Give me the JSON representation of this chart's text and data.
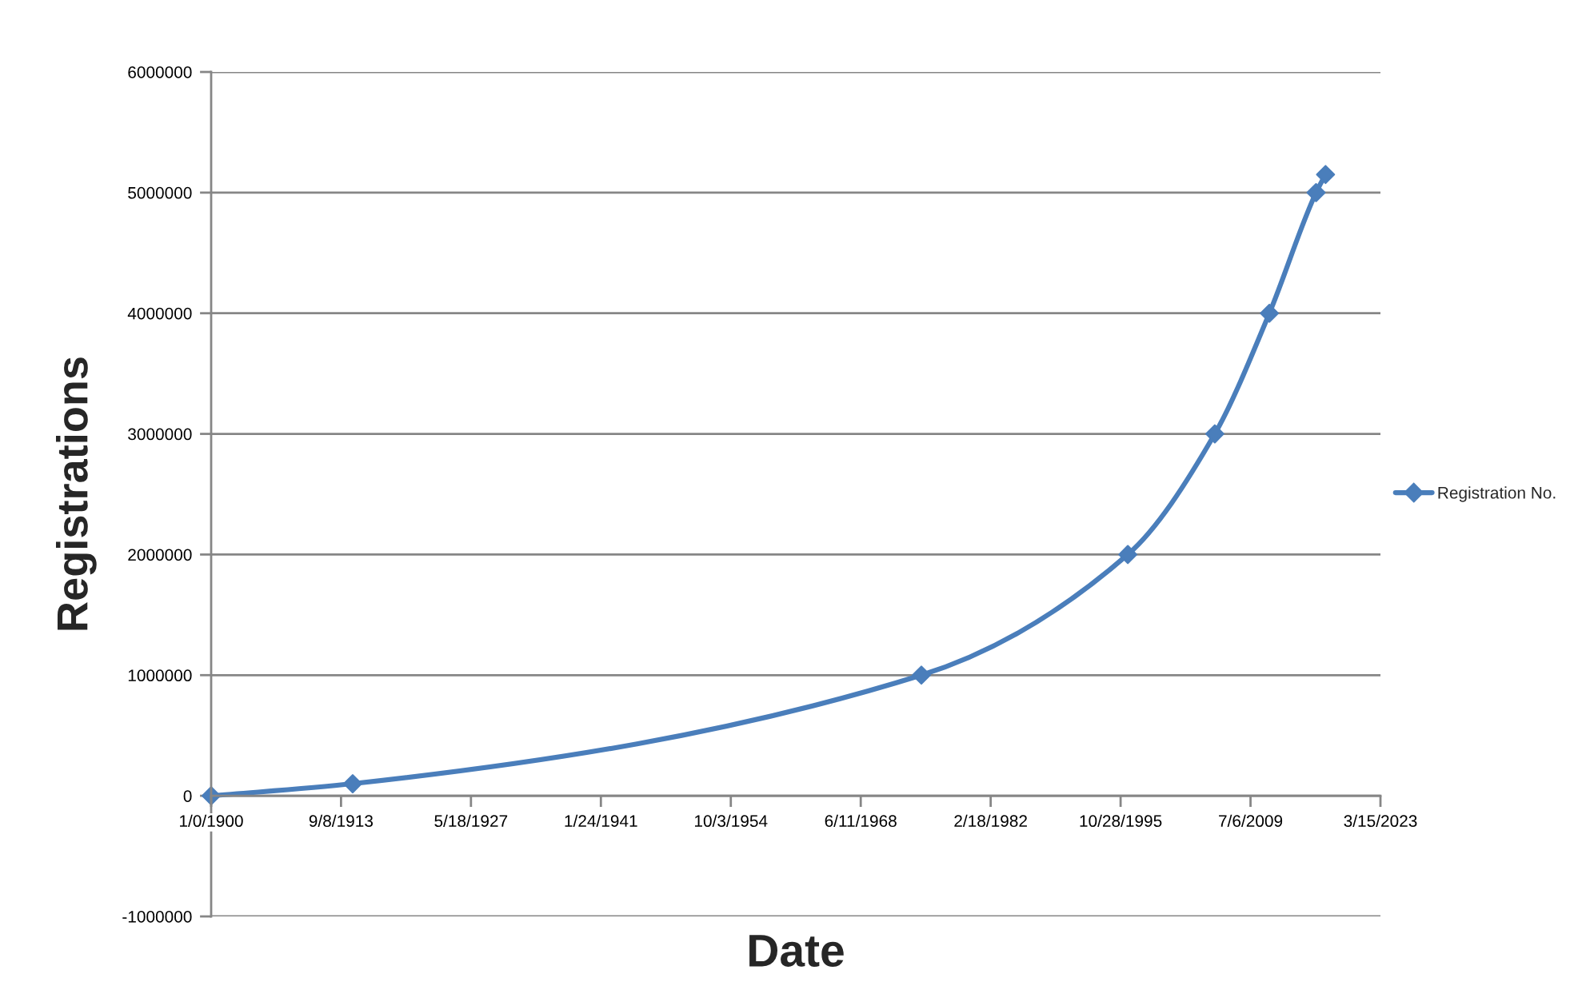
{
  "chart_data": {
    "type": "line",
    "xlabel": "Date",
    "ylabel": "Registrations",
    "x": [
      "1900-01",
      "1914-12",
      "1974-11",
      "1996-08",
      "2005-10",
      "2011-07",
      "2016-06",
      "2017-06"
    ],
    "series": [
      {
        "name": "Registration No.",
        "color": "#4a7ebb",
        "values": [
          0,
          100000,
          1000000,
          2000000,
          3000000,
          4000000,
          5000000,
          5150000
        ]
      }
    ],
    "xlim": [
      "1900-01",
      "2023-03-15"
    ],
    "xticks": [
      {
        "value": "1900-01",
        "label": "1/0/1900"
      },
      {
        "value": "1913-09-08",
        "label": "9/8/1913"
      },
      {
        "value": "1927-05-18",
        "label": "5/18/1927"
      },
      {
        "value": "1941-01-24",
        "label": "1/24/1941"
      },
      {
        "value": "1954-10-03",
        "label": "10/3/1954"
      },
      {
        "value": "1968-06-11",
        "label": "6/11/1968"
      },
      {
        "value": "1982-02-18",
        "label": "2/18/1982"
      },
      {
        "value": "1995-10-28",
        "label": "10/28/1995"
      },
      {
        "value": "2009-07-06",
        "label": "7/6/2009"
      },
      {
        "value": "2023-03-15",
        "label": "3/15/2023"
      }
    ],
    "ylim": [
      -1000000,
      6000000
    ],
    "yticks": [
      -1000000,
      0,
      1000000,
      2000000,
      3000000,
      4000000,
      5000000,
      6000000
    ],
    "grid": "y",
    "legend": "right",
    "marker": "diamond",
    "line_style": "solid"
  }
}
